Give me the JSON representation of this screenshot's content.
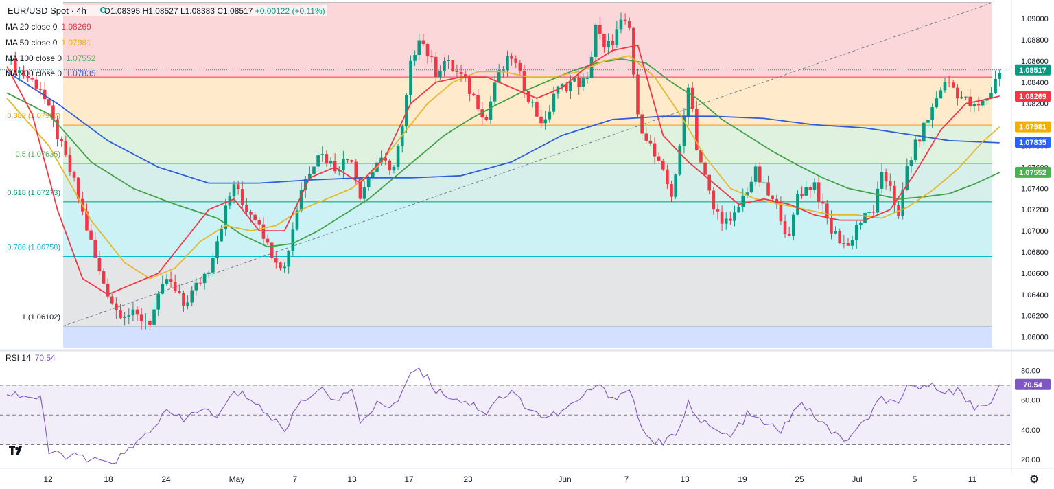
{
  "header": {
    "symbol": "EUR/USD Spot · 4h",
    "open": "O1.08395",
    "high": "H1.08527",
    "low": "L1.08383",
    "close": "C1.08517",
    "change": "+0.00122 (+0.11%)"
  },
  "indicators": [
    {
      "label": "MA 20 close 0",
      "value": "1.08269",
      "color": "#f23645"
    },
    {
      "label": "MA 50 close 0",
      "value": "1.07981",
      "color": "#f0b000"
    },
    {
      "label": "MA 100 close 0",
      "value": "1.07552",
      "color": "#4caf50"
    },
    {
      "label": "MA 200 close 0",
      "value": "1.07835",
      "color": "#2962ff"
    }
  ],
  "rsi_legend": {
    "label": "RSI 14",
    "value": "70.54"
  },
  "colors": {
    "up": "#089981",
    "down": "#f23645",
    "ma20": "#f23645",
    "ma50": "#e5b72a",
    "ma100": "#43a047",
    "ma200": "#2f5ed8",
    "rsi": "#7e57c2"
  },
  "icons": [
    "live-status-icon",
    "tradingview-logo-icon",
    "settings-gear-icon"
  ],
  "chart_data": [
    {
      "type": "candlestick",
      "title": "EUR/USD Spot · 4h",
      "ylim": [
        1.059,
        1.0915
      ],
      "y_ticks": [
        "1.09000",
        "1.08800",
        "1.08600",
        "1.08400",
        "1.08200",
        "1.08000",
        "1.07800",
        "1.07600",
        "1.07400",
        "1.07200",
        "1.07000",
        "1.06800",
        "1.06600",
        "1.06400",
        "1.06200",
        "1.06000"
      ],
      "x_ticks": [
        "12",
        "18",
        "24",
        "May",
        "7",
        "13",
        "17",
        "23",
        "Jun",
        "7",
        "13",
        "19",
        "25",
        "Jul",
        "5",
        "11"
      ],
      "price_path": [
        [
          0,
          1.086
        ],
        [
          4,
          1.0835
        ],
        [
          8,
          1.0745
        ],
        [
          11,
          1.066
        ],
        [
          13,
          1.0625
        ],
        [
          17,
          1.0615
        ],
        [
          19,
          1.0655
        ],
        [
          21,
          1.063
        ],
        [
          24,
          1.0665
        ],
        [
          26,
          1.072
        ],
        [
          27,
          1.0745
        ],
        [
          28,
          1.0725
        ],
        [
          30,
          1.071
        ],
        [
          31,
          1.0685
        ],
        [
          33,
          1.0665
        ],
        [
          35,
          1.074
        ],
        [
          37,
          1.0775
        ],
        [
          39,
          1.076
        ],
        [
          41,
          1.077
        ],
        [
          42,
          1.0735
        ],
        [
          44,
          1.0765
        ],
        [
          46,
          1.076
        ],
        [
          47,
          1.0795
        ],
        [
          48,
          1.0855
        ],
        [
          49,
          1.0885
        ],
        [
          51,
          1.085
        ],
        [
          52,
          1.086
        ],
        [
          54,
          1.0845
        ],
        [
          56,
          1.082
        ],
        [
          57,
          1.0805
        ],
        [
          58,
          1.084
        ],
        [
          60,
          1.0865
        ],
        [
          61,
          1.0845
        ],
        [
          63,
          1.081
        ],
        [
          64,
          1.08
        ],
        [
          65,
          1.083
        ],
        [
          67,
          1.084
        ],
        [
          69,
          1.084
        ],
        [
          70,
          1.0895
        ],
        [
          71,
          1.087
        ],
        [
          72,
          1.088
        ],
        [
          73,
          1.0895
        ],
        [
          74,
          1.089
        ],
        [
          75,
          1.0805
        ],
        [
          76,
          1.079
        ],
        [
          77,
          1.077
        ],
        [
          79,
          1.0735
        ],
        [
          80,
          1.0775
        ],
        [
          81,
          1.084
        ],
        [
          81.5,
          1.0815
        ],
        [
          82,
          1.078
        ],
        [
          84,
          1.072
        ],
        [
          86,
          1.0705
        ],
        [
          88,
          1.074
        ],
        [
          89,
          1.0755
        ],
        [
          90,
          1.074
        ],
        [
          92,
          1.0715
        ],
        [
          93,
          1.069
        ],
        [
          94,
          1.0735
        ],
        [
          96,
          1.0745
        ],
        [
          97,
          1.072
        ],
        [
          98,
          1.07
        ],
        [
          100,
          1.0685
        ],
        [
          101,
          1.0705
        ],
        [
          103,
          1.072
        ],
        [
          104,
          1.075
        ],
        [
          105,
          1.0745
        ],
        [
          106,
          1.071
        ],
        [
          107,
          1.076
        ],
        [
          108,
          1.078
        ],
        [
          110,
          1.0815
        ],
        [
          111,
          1.0835
        ],
        [
          112,
          1.084
        ],
        [
          113,
          1.083
        ],
        [
          115,
          1.0815
        ],
        [
          116,
          1.082
        ],
        [
          117,
          1.0832
        ],
        [
          118,
          1.0852
        ]
      ],
      "moving_averages": {
        "ma20": [
          [
            0,
            1.0855
          ],
          [
            3,
            1.081
          ],
          [
            6,
            1.072
          ],
          [
            9,
            1.0655
          ],
          [
            12,
            1.064
          ],
          [
            15,
            1.065
          ],
          [
            18,
            1.066
          ],
          [
            21,
            1.069
          ],
          [
            24,
            1.072
          ],
          [
            27,
            1.073
          ],
          [
            30,
            1.07
          ],
          [
            33,
            1.07
          ],
          [
            36,
            1.075
          ],
          [
            39,
            1.076
          ],
          [
            42,
            1.0745
          ],
          [
            45,
            1.077
          ],
          [
            48,
            1.082
          ],
          [
            51,
            1.084
          ],
          [
            54,
            1.0845
          ],
          [
            57,
            1.0845
          ],
          [
            60,
            1.0835
          ],
          [
            63,
            1.0825
          ],
          [
            66,
            1.0835
          ],
          [
            69,
            1.0855
          ],
          [
            72,
            1.087
          ],
          [
            75,
            1.0875
          ],
          [
            78,
            1.079
          ],
          [
            81,
            1.0765
          ],
          [
            84,
            1.0745
          ],
          [
            87,
            1.0725
          ],
          [
            90,
            1.073
          ],
          [
            93,
            1.0725
          ],
          [
            96,
            1.0715
          ],
          [
            99,
            1.071
          ],
          [
            102,
            1.071
          ],
          [
            105,
            1.072
          ],
          [
            108,
            1.0755
          ],
          [
            111,
            1.0795
          ],
          [
            114,
            1.082
          ],
          [
            117,
            1.0825
          ],
          [
            118,
            1.0827
          ]
        ],
        "ma50": [
          [
            0,
            1.0825
          ],
          [
            5,
            1.078
          ],
          [
            10,
            1.071
          ],
          [
            14,
            1.067
          ],
          [
            17,
            1.0655
          ],
          [
            20,
            1.0665
          ],
          [
            23,
            1.069
          ],
          [
            26,
            1.0705
          ],
          [
            29,
            1.07
          ],
          [
            32,
            1.0705
          ],
          [
            35,
            1.072
          ],
          [
            38,
            1.073
          ],
          [
            41,
            1.074
          ],
          [
            44,
            1.076
          ],
          [
            47,
            1.079
          ],
          [
            50,
            1.082
          ],
          [
            53,
            1.084
          ],
          [
            56,
            1.085
          ],
          [
            59,
            1.085
          ],
          [
            62,
            1.0845
          ],
          [
            65,
            1.0845
          ],
          [
            68,
            1.085
          ],
          [
            71,
            1.086
          ],
          [
            74,
            1.0865
          ],
          [
            77,
            1.0845
          ],
          [
            80,
            1.081
          ],
          [
            83,
            1.077
          ],
          [
            86,
            1.074
          ],
          [
            89,
            1.073
          ],
          [
            92,
            1.0725
          ],
          [
            95,
            1.072
          ],
          [
            98,
            1.0715
          ],
          [
            101,
            1.0715
          ],
          [
            104,
            1.0712
          ],
          [
            107,
            1.0722
          ],
          [
            110,
            1.0738
          ],
          [
            113,
            1.0758
          ],
          [
            116,
            1.0784
          ],
          [
            118,
            1.0798
          ]
        ],
        "ma100": [
          [
            0,
            1.083
          ],
          [
            5,
            1.081
          ],
          [
            10,
            1.0765
          ],
          [
            15,
            1.074
          ],
          [
            20,
            1.0725
          ],
          [
            25,
            1.0712
          ],
          [
            28,
            1.0696
          ],
          [
            31,
            1.0685
          ],
          [
            34,
            1.0688
          ],
          [
            37,
            1.07
          ],
          [
            40,
            1.0715
          ],
          [
            43,
            1.073
          ],
          [
            46,
            1.075
          ],
          [
            49,
            1.077
          ],
          [
            52,
            1.079
          ],
          [
            55,
            1.0805
          ],
          [
            58,
            1.0818
          ],
          [
            61,
            1.083
          ],
          [
            64,
            1.084
          ],
          [
            67,
            1.085
          ],
          [
            70,
            1.0858
          ],
          [
            73,
            1.0862
          ],
          [
            76,
            1.0858
          ],
          [
            79,
            1.084
          ],
          [
            82,
            1.0825
          ],
          [
            85,
            1.0805
          ],
          [
            88,
            1.079
          ],
          [
            91,
            1.0775
          ],
          [
            94,
            1.0762
          ],
          [
            97,
            1.075
          ],
          [
            100,
            1.074
          ],
          [
            103,
            1.0735
          ],
          [
            106,
            1.073
          ],
          [
            109,
            1.0732
          ],
          [
            112,
            1.0735
          ],
          [
            115,
            1.0744
          ],
          [
            118,
            1.0755
          ]
        ],
        "ma200": [
          [
            0,
            1.085
          ],
          [
            6,
            1.082
          ],
          [
            12,
            1.0785
          ],
          [
            18,
            1.076
          ],
          [
            24,
            1.0745
          ],
          [
            30,
            1.0745
          ],
          [
            36,
            1.0748
          ],
          [
            42,
            1.075
          ],
          [
            48,
            1.075
          ],
          [
            54,
            1.0752
          ],
          [
            60,
            1.0765
          ],
          [
            66,
            1.079
          ],
          [
            72,
            1.0805
          ],
          [
            78,
            1.0808
          ],
          [
            84,
            1.0808
          ],
          [
            90,
            1.0806
          ],
          [
            96,
            1.08
          ],
          [
            102,
            1.0797
          ],
          [
            108,
            1.079
          ],
          [
            112,
            1.0785
          ],
          [
            115,
            1.0784
          ],
          [
            118,
            1.0783
          ]
        ]
      },
      "fibonacci": [
        {
          "level": "0",
          "price": 1.0915
        },
        {
          "level": "0.236",
          "price": 1.0845
        },
        {
          "level": "0.382",
          "price": "1.07997",
          "label": "0.382 (1.07997)"
        },
        {
          "level": "0.5",
          "price": "1.07635",
          "label": "0.5 (1.07635)"
        },
        {
          "level": "0.618",
          "price": "1.07273",
          "label": "0.618 (1.07273)"
        },
        {
          "level": "0.786",
          "price": "1.06758",
          "label": "0.786 (1.06758)"
        },
        {
          "level": "1",
          "price": "1.06102",
          "label": "1 (1.06102)"
        }
      ],
      "current_price_label": "1.08517",
      "price_labels": [
        {
          "text": "1.08517",
          "price": 1.08517,
          "bg": "#089981"
        },
        {
          "text": "1.08269",
          "price": 1.08269,
          "bg": "#f23645"
        },
        {
          "text": "1.07981",
          "price": 1.07981,
          "bg": "#f0b000"
        },
        {
          "text": "1.07835",
          "price": 1.07835,
          "bg": "#2962ff"
        },
        {
          "text": "1.07552",
          "price": 1.07552,
          "bg": "#4caf50"
        }
      ]
    },
    {
      "type": "line",
      "title": "RSI 14",
      "ylim": [
        15,
        88
      ],
      "y_ticks": [
        "80.00",
        "60.00",
        "40.00",
        "20.00"
      ],
      "bands": [
        70,
        50,
        30
      ],
      "current_value": "70.54",
      "values": [
        [
          0,
          65
        ],
        [
          3,
          62
        ],
        [
          4,
          60
        ],
        [
          5,
          25
        ],
        [
          8,
          22
        ],
        [
          11,
          18
        ],
        [
          13,
          20
        ],
        [
          15,
          28
        ],
        [
          17,
          40
        ],
        [
          19,
          52
        ],
        [
          21,
          46
        ],
        [
          23,
          55
        ],
        [
          25,
          48
        ],
        [
          27,
          65
        ],
        [
          29,
          62
        ],
        [
          31,
          50
        ],
        [
          33,
          40
        ],
        [
          35,
          60
        ],
        [
          37,
          67
        ],
        [
          39,
          62
        ],
        [
          41,
          65
        ],
        [
          42,
          45
        ],
        [
          44,
          58
        ],
        [
          46,
          55
        ],
        [
          47,
          68
        ],
        [
          48,
          78
        ],
        [
          49,
          82
        ],
        [
          51,
          67
        ],
        [
          53,
          62
        ],
        [
          55,
          58
        ],
        [
          57,
          52
        ],
        [
          58,
          60
        ],
        [
          60,
          65
        ],
        [
          62,
          55
        ],
        [
          64,
          48
        ],
        [
          66,
          52
        ],
        [
          68,
          60
        ],
        [
          70,
          70
        ],
        [
          72,
          62
        ],
        [
          74,
          67
        ],
        [
          75,
          50
        ],
        [
          76,
          35
        ],
        [
          78,
          30
        ],
        [
          80,
          40
        ],
        [
          81,
          62
        ],
        [
          82,
          48
        ],
        [
          84,
          40
        ],
        [
          86,
          35
        ],
        [
          88,
          50
        ],
        [
          90,
          45
        ],
        [
          92,
          38
        ],
        [
          94,
          58
        ],
        [
          96,
          50
        ],
        [
          98,
          38
        ],
        [
          100,
          33
        ],
        [
          102,
          45
        ],
        [
          104,
          62
        ],
        [
          106,
          55
        ],
        [
          107,
          68
        ],
        [
          109,
          70
        ],
        [
          111,
          68
        ],
        [
          113,
          66
        ],
        [
          115,
          55
        ],
        [
          117,
          60
        ],
        [
          118,
          70.54
        ]
      ]
    }
  ]
}
